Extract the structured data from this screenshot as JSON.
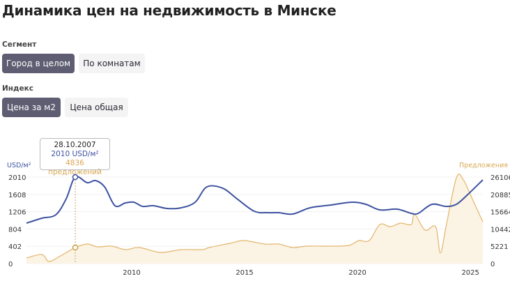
{
  "title": "Динамика цен на недвижимость в Минске",
  "segment": {
    "label": "Сегмент",
    "options": [
      "Город в целом",
      "По комнатам"
    ],
    "selected": 0
  },
  "index": {
    "label": "Индекс",
    "options": [
      "Цена за м2",
      "Цена общая"
    ],
    "selected": 0
  },
  "colors": {
    "price": "#3d52a0",
    "offers": "#e2b56a",
    "offers_fill": "#fbf3e4",
    "active_button": "#5e5d72"
  },
  "tooltip": {
    "date": "28.10.2007",
    "price": "2010 USD/м²",
    "offers": "4836 предложений"
  },
  "chart_data": {
    "type": "line",
    "title": "",
    "ylabel": "USD/м²",
    "y2label": "Предложения",
    "xlim": [
      2005.34,
      2025.55
    ],
    "ylim": [
      0,
      2010
    ],
    "y2lim": [
      0,
      26106
    ],
    "x_ticks": [
      "2010",
      "2015",
      "2020",
      "2025"
    ],
    "y_ticks": [
      "0",
      "402",
      "804",
      "1206",
      "1608",
      "2010"
    ],
    "y2_ticks": [
      "0",
      "5221",
      "10442",
      "15664",
      "20885",
      "26106"
    ],
    "grid": true,
    "series": [
      {
        "name": "USD/м²",
        "axis": "left",
        "points": [
          [
            2005.34,
            940
          ],
          [
            2006.02,
            1054
          ],
          [
            2006.64,
            1135
          ],
          [
            2007.1,
            1507
          ],
          [
            2007.5,
            2010
          ],
          [
            2008.03,
            1880
          ],
          [
            2008.4,
            1929
          ],
          [
            2008.8,
            1783
          ],
          [
            2009.26,
            1345
          ],
          [
            2009.72,
            1410
          ],
          [
            2010.09,
            1426
          ],
          [
            2010.49,
            1329
          ],
          [
            2010.96,
            1345
          ],
          [
            2011.57,
            1281
          ],
          [
            2012.19,
            1297
          ],
          [
            2012.81,
            1426
          ],
          [
            2013.33,
            1783
          ],
          [
            2014.04,
            1750
          ],
          [
            2014.66,
            1507
          ],
          [
            2015.43,
            1216
          ],
          [
            2016.05,
            1183
          ],
          [
            2016.51,
            1183
          ],
          [
            2017.13,
            1151
          ],
          [
            2017.9,
            1297
          ],
          [
            2018.83,
            1362
          ],
          [
            2019.75,
            1426
          ],
          [
            2020.37,
            1378
          ],
          [
            2020.99,
            1248
          ],
          [
            2021.76,
            1264
          ],
          [
            2022.38,
            1167
          ],
          [
            2022.69,
            1167
          ],
          [
            2023.3,
            1378
          ],
          [
            2023.92,
            1329
          ],
          [
            2024.38,
            1378
          ],
          [
            2024.85,
            1589
          ],
          [
            2025.55,
            1945
          ]
        ]
      },
      {
        "name": "Предложения",
        "axis": "right",
        "points": [
          [
            2005.34,
            1684
          ],
          [
            2006.02,
            2737
          ],
          [
            2006.33,
            632
          ],
          [
            2006.79,
            2105
          ],
          [
            2007.5,
            4836
          ],
          [
            2008.03,
            5895
          ],
          [
            2008.49,
            5053
          ],
          [
            2009.11,
            5263
          ],
          [
            2009.72,
            4211
          ],
          [
            2010.34,
            4842
          ],
          [
            2011.27,
            3368
          ],
          [
            2012.19,
            4211
          ],
          [
            2013.12,
            4211
          ],
          [
            2013.43,
            4842
          ],
          [
            2014.35,
            6105
          ],
          [
            2014.97,
            6947
          ],
          [
            2015.9,
            5895
          ],
          [
            2016.51,
            5895
          ],
          [
            2017.13,
            4842
          ],
          [
            2017.75,
            5263
          ],
          [
            2018.67,
            5263
          ],
          [
            2019.6,
            5474
          ],
          [
            2020.06,
            6947
          ],
          [
            2020.52,
            6947
          ],
          [
            2020.99,
            11790
          ],
          [
            2021.45,
            11158
          ],
          [
            2021.91,
            12211
          ],
          [
            2022.38,
            11790
          ],
          [
            2022.53,
            14948
          ],
          [
            2022.99,
            10105
          ],
          [
            2023.46,
            11158
          ],
          [
            2023.67,
            3158
          ],
          [
            2023.92,
            11158
          ],
          [
            2024.38,
            25896
          ],
          [
            2024.69,
            25264
          ],
          [
            2025.15,
            18527
          ],
          [
            2025.55,
            12632
          ]
        ]
      }
    ],
    "highlight": {
      "x": 2007.5,
      "price": 2010,
      "offers": 4836
    }
  }
}
